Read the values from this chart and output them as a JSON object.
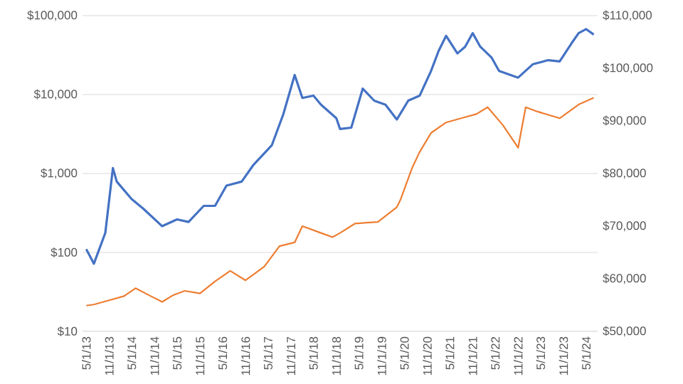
{
  "chart_data": {
    "type": "line",
    "log": "y",
    "grid": "y",
    "xlim": [
      "2013-04-01",
      "2024-08-01"
    ],
    "xticks": [
      {
        "value": "2013-05-01",
        "label": "5/1/13"
      },
      {
        "value": "2013-11-01",
        "label": "11/1/13"
      },
      {
        "value": "2014-05-01",
        "label": "5/1/14"
      },
      {
        "value": "2014-11-01",
        "label": "11/1/14"
      },
      {
        "value": "2015-05-01",
        "label": "5/1/15"
      },
      {
        "value": "2015-11-01",
        "label": "11/1/15"
      },
      {
        "value": "2016-05-01",
        "label": "5/1/16"
      },
      {
        "value": "2016-11-01",
        "label": "11/1/16"
      },
      {
        "value": "2017-05-01",
        "label": "5/1/17"
      },
      {
        "value": "2017-11-01",
        "label": "11/1/17"
      },
      {
        "value": "2018-05-01",
        "label": "5/1/18"
      },
      {
        "value": "2018-11-01",
        "label": "11/1/18"
      },
      {
        "value": "2019-05-01",
        "label": "5/1/19"
      },
      {
        "value": "2019-11-01",
        "label": "11/1/19"
      },
      {
        "value": "2020-05-01",
        "label": "5/1/20"
      },
      {
        "value": "2020-11-01",
        "label": "11/1/20"
      },
      {
        "value": "2021-05-01",
        "label": "5/1/21"
      },
      {
        "value": "2021-11-01",
        "label": "11/1/21"
      },
      {
        "value": "2022-05-01",
        "label": "5/1/22"
      },
      {
        "value": "2022-11-01",
        "label": "11/1/22"
      },
      {
        "value": "2023-05-01",
        "label": "5/1/23"
      },
      {
        "value": "2023-11-01",
        "label": "11/1/23"
      },
      {
        "value": "2024-05-01",
        "label": "5/1/24"
      }
    ],
    "ylim": [
      10,
      100000
    ],
    "yticks": [
      {
        "value": 10,
        "label": "$10"
      },
      {
        "value": 100,
        "label": "$100"
      },
      {
        "value": 1000,
        "label": "$1,000"
      },
      {
        "value": 10000,
        "label": "$10,000"
      },
      {
        "value": 100000,
        "label": "$100,000"
      }
    ],
    "y2lim": [
      50000,
      110000
    ],
    "y2ticks": [
      {
        "value": 50000,
        "label": "$50,000"
      },
      {
        "value": 60000,
        "label": "$60,000"
      },
      {
        "value": 70000,
        "label": "$70,000"
      },
      {
        "value": 80000,
        "label": "$80,000"
      },
      {
        "value": 90000,
        "label": "$90,000"
      },
      {
        "value": 100000,
        "label": "$100,000"
      },
      {
        "value": 110000,
        "label": "$110,000"
      }
    ],
    "series": [
      {
        "color": "#4472c4",
        "x": [
          "2013-05-01",
          "2013-07-01",
          "2013-10-01",
          "2013-12-01",
          "2014-01-01",
          "2014-05-01",
          "2014-08-01",
          "2015-01-01",
          "2015-05-01",
          "2015-08-01",
          "2015-12-01",
          "2016-03-01",
          "2016-06-01",
          "2016-10-01",
          "2017-01-01",
          "2017-06-01",
          "2017-09-01",
          "2017-12-01",
          "2018-02-01",
          "2018-05-01",
          "2018-07-01",
          "2018-11-01",
          "2018-12-01",
          "2019-03-01",
          "2019-06-01",
          "2019-09-01",
          "2019-12-01",
          "2020-03-01",
          "2020-06-01",
          "2020-09-01",
          "2020-12-01",
          "2021-02-01",
          "2021-04-01",
          "2021-07-01",
          "2021-09-01",
          "2021-11-01",
          "2022-01-01",
          "2022-04-01",
          "2022-06-01",
          "2022-11-01",
          "2023-03-01",
          "2023-07-01",
          "2023-10-01",
          "2024-01-01",
          "2024-03-01",
          "2024-05-01",
          "2024-07-01"
        ],
        "values": [
          110,
          72,
          177,
          1170,
          790,
          473,
          360,
          215,
          262,
          243,
          389,
          389,
          702,
          790,
          1270,
          2290,
          5650,
          17700,
          9060,
          9700,
          7440,
          5020,
          3660,
          3810,
          11900,
          8380,
          7440,
          4830,
          8380,
          9700,
          19900,
          36000,
          55400,
          33200,
          40400,
          60000,
          40400,
          29500,
          19900,
          16400,
          24300,
          27300,
          26300,
          43800,
          60000,
          67500,
          57600
        ]
      },
      {
        "color": "#ed7d31",
        "axis": "y2",
        "x": [
          "2013-05-01",
          "2013-07-01",
          "2013-11-01",
          "2014-03-01",
          "2014-06-01",
          "2014-10-01",
          "2015-01-01",
          "2015-04-01",
          "2015-07-01",
          "2015-11-01",
          "2016-03-01",
          "2016-07-01",
          "2016-11-01",
          "2017-04-01",
          "2017-08-01",
          "2017-12-01",
          "2018-02-01",
          "2018-07-01",
          "2018-10-01",
          "2018-12-01",
          "2019-04-01",
          "2019-10-01",
          "2020-03-01",
          "2020-04-01",
          "2020-07-01",
          "2020-09-01",
          "2020-12-01",
          "2021-04-01",
          "2021-08-01",
          "2021-12-01",
          "2022-03-01",
          "2022-07-01",
          "2022-11-01",
          "2023-01-01",
          "2023-04-01",
          "2023-10-01",
          "2024-03-01",
          "2024-07-01"
        ],
        "values": [
          54900,
          55100,
          55900,
          56700,
          58200,
          56700,
          55600,
          56900,
          57700,
          57200,
          59500,
          61500,
          59700,
          62300,
          66200,
          66900,
          70000,
          68700,
          67900,
          68700,
          70500,
          70800,
          73600,
          75100,
          81000,
          84100,
          87700,
          89700,
          90500,
          91300,
          92600,
          89200,
          84900,
          92600,
          91800,
          90500,
          93100,
          94400
        ]
      }
    ]
  }
}
